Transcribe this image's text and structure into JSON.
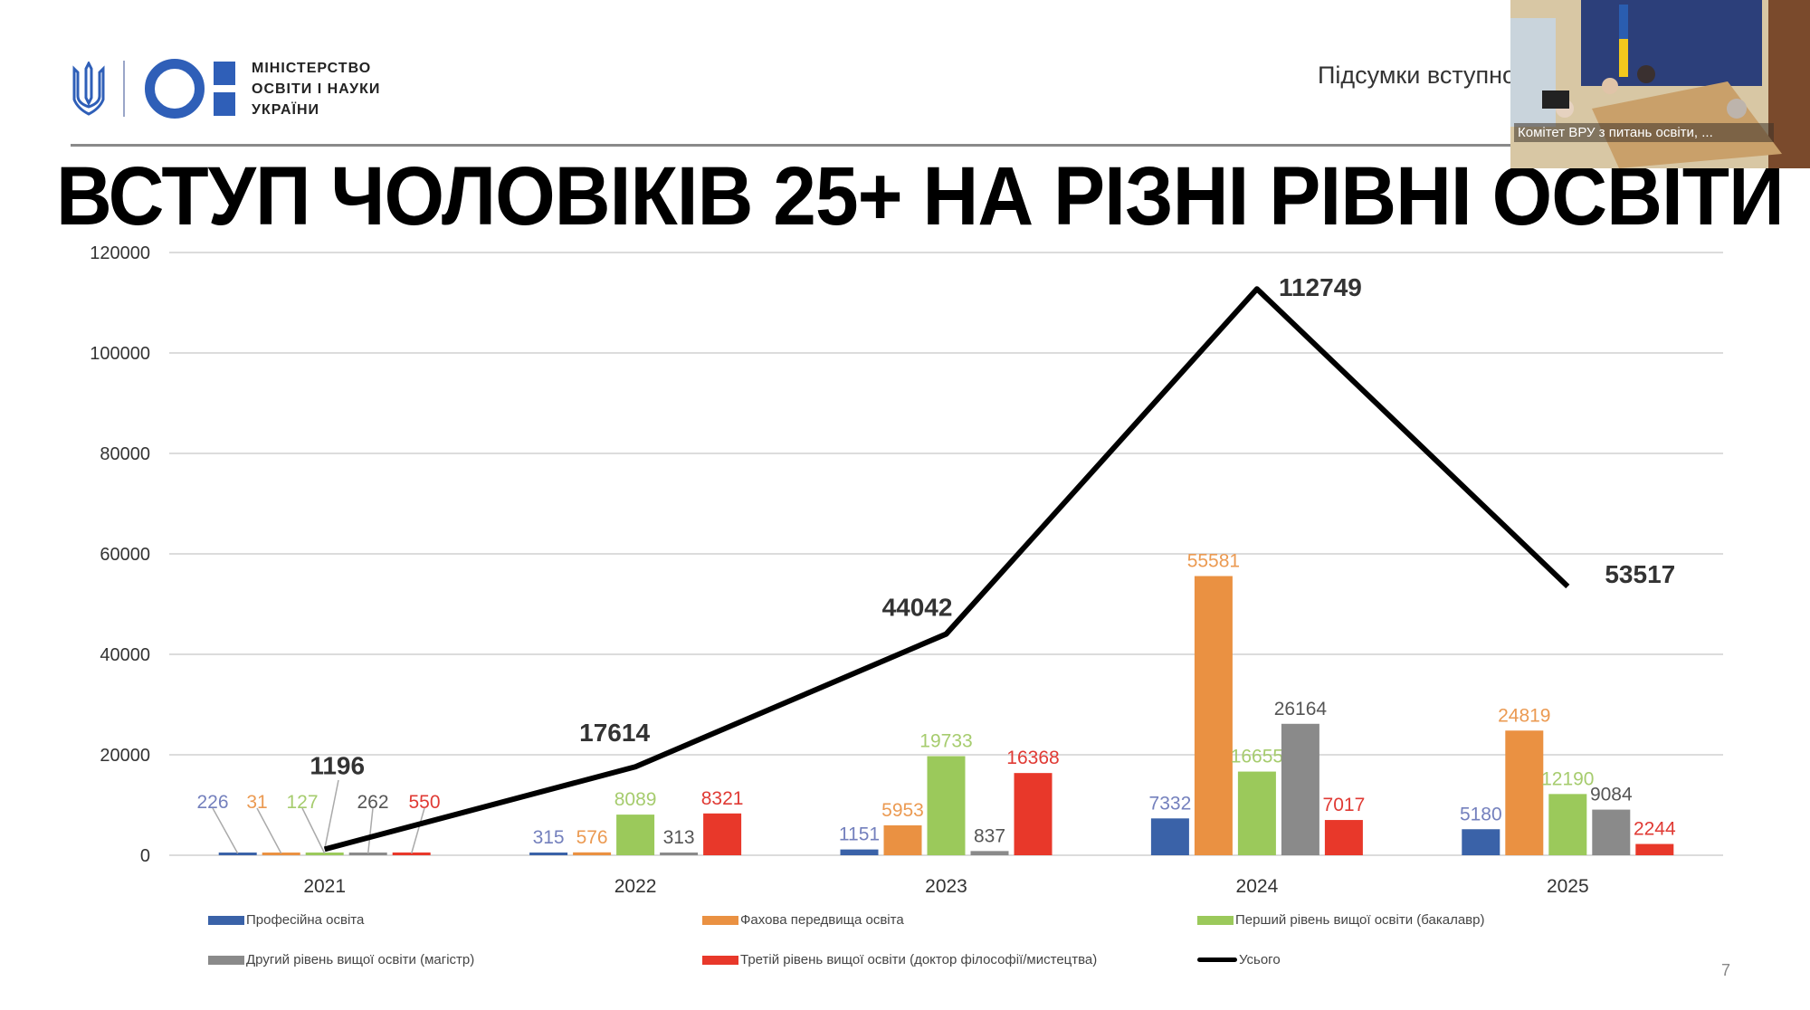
{
  "header": {
    "logo_text": [
      "МІНІСТЕРСТВО",
      "ОСВІТИ І НАУКИ",
      "УКРАЇНИ"
    ],
    "subtitle": "Підсумки вступної",
    "title": "ВСТУП ЧОЛОВІКІВ 25+ НА РІЗНІ РІВНІ ОСВІТИ",
    "page_number": "7"
  },
  "video": {
    "caption": "Комітет ВРУ з питань освіти, ..."
  },
  "chart_data": {
    "type": "bar",
    "title": "",
    "categories": [
      "2021",
      "2022",
      "2023",
      "2024",
      "2025"
    ],
    "ylim": [
      0,
      120000
    ],
    "yticks": [
      0,
      20000,
      40000,
      60000,
      80000,
      100000,
      120000
    ],
    "ytick_labels": [
      "0",
      "20000",
      "40000",
      "60000",
      "80000",
      "100000",
      "120000"
    ],
    "grid": true,
    "legend_position": "bottom",
    "series": [
      {
        "name": "Професійна освіта",
        "type": "bar",
        "color": "#3a62a8",
        "label_color": "#7480bd",
        "values": [
          226,
          315,
          1151,
          7332,
          5180
        ]
      },
      {
        "name": "Фахова передвища освіта",
        "type": "bar",
        "color": "#ea9142",
        "label_color": "#eb9a52",
        "values": [
          31,
          576,
          5953,
          55581,
          24819
        ]
      },
      {
        "name": "Перший рівень вищої освіти (бакалавр)",
        "type": "bar",
        "color": "#9bc95b",
        "label_color": "#a6cc6e",
        "values": [
          127,
          8089,
          19733,
          16655,
          12190
        ]
      },
      {
        "name": "Другий рівень вищої освіти (магістр)",
        "type": "bar",
        "color": "#8a8a8a",
        "label_color": "#555555",
        "values": [
          262,
          313,
          837,
          26164,
          9084
        ]
      },
      {
        "name": "Третій рівень вищої освіти (доктор філософії/мистецтва)",
        "type": "bar",
        "color": "#e8382a",
        "label_color": "#e03a34",
        "values": [
          550,
          8321,
          16368,
          7017,
          2244
        ]
      },
      {
        "name": "Усього",
        "type": "line",
        "color": "#000000",
        "label_color": "#333333",
        "values": [
          1196,
          17614,
          44042,
          112749,
          53517
        ]
      }
    ]
  }
}
